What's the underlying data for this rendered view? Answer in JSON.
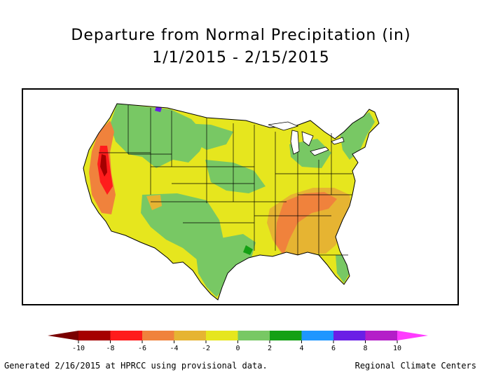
{
  "title": {
    "line1": "Departure from Normal Precipitation (in)",
    "line2": "1/1/2015 - 2/15/2015"
  },
  "legend": {
    "tick_labels": [
      "-10",
      "-8",
      "-6",
      "-4",
      "-2",
      "0",
      "2",
      "4",
      "6",
      "8",
      "10"
    ],
    "colors": [
      "#a50000",
      "#ff1c1c",
      "#f0823c",
      "#e6b432",
      "#e6e61e",
      "#78c864",
      "#14a014",
      "#1e96ff",
      "#6a1ee6",
      "#b41ec8"
    ],
    "low_end_color": "#7a0000",
    "high_end_color": "#ff3cff"
  },
  "map": {
    "land_base_color": "#e6e61e",
    "water_color": "#ffffff",
    "outline_color": "#000000"
  },
  "footer": {
    "left": "Generated 2/16/2015 at HPRCC using provisional data.",
    "right": "Regional Climate Centers"
  }
}
